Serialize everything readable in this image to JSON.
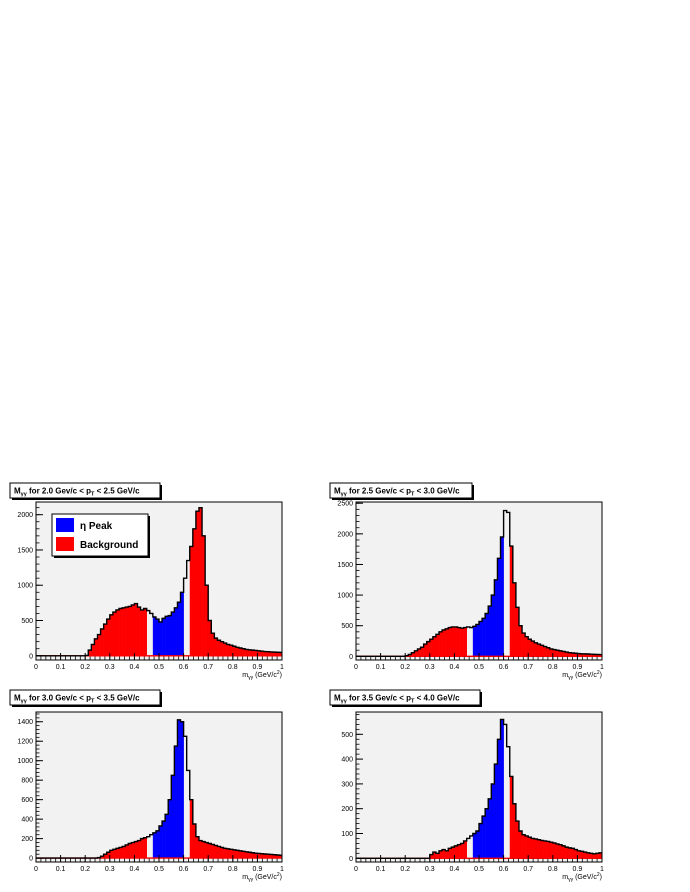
{
  "figure": {
    "panels": [
      {
        "title_main": "M",
        "title_sub1": "γγ",
        "title_mid": " for 2.0 Gev/c < p",
        "title_sub2": "T",
        "title_end": " < 2.5 GeV/c",
        "xlabel_main": "m",
        "xlabel_sub": "γγ",
        "xlabel_unit": " (GeV/c",
        "xlabel_sup": "2",
        "xlabel_close": ")",
        "legend": [
          {
            "label": "η Peak",
            "color": "#0000ff"
          },
          {
            "label": "Background",
            "color": "#ff0000"
          }
        ]
      },
      {
        "title_main": "M",
        "title_sub1": "γγ",
        "title_mid": " for 2.5 Gev/c < p",
        "title_sub2": "T",
        "title_end": " < 3.0 GeV/c",
        "xlabel_main": "m",
        "xlabel_sub": "γγ",
        "xlabel_unit": " (GeV/c",
        "xlabel_sup": "2",
        "xlabel_close": ")",
        "legend": []
      },
      {
        "title_main": "M",
        "title_sub1": "γγ",
        "title_mid": " for 3.0 Gev/c < p",
        "title_sub2": "T",
        "title_end": " < 3.5 GeV/c",
        "xlabel_main": "m",
        "xlabel_sub": "γγ",
        "xlabel_unit": " (GeV/c",
        "xlabel_sup": "2",
        "xlabel_close": ")",
        "legend": []
      },
      {
        "title_main": "M",
        "title_sub1": "γγ",
        "title_mid": " for 3.5 Gev/c < p",
        "title_sub2": "T",
        "title_end": " < 4.0 GeV/c",
        "xlabel_main": "m",
        "xlabel_sub": "γγ",
        "xlabel_unit": " (GeV/c",
        "xlabel_sup": "2",
        "xlabel_close": ")",
        "legend": []
      }
    ]
  },
  "chart_data": [
    {
      "type": "bar",
      "bin_width": 0.0125,
      "xlim": [
        0,
        1
      ],
      "ylim": [
        -60,
        2180
      ],
      "yticks": [
        0,
        500,
        1000,
        1500,
        2000
      ],
      "xticks": [
        0,
        0.1,
        0.2,
        0.3,
        0.4,
        0.5,
        0.6,
        0.7,
        0.8,
        0.9,
        1
      ],
      "xtick_labels": [
        "0",
        "0.1",
        "0.2",
        "0.3",
        "0.4",
        "0.5",
        "0.6",
        "0.7",
        "0.8",
        "0.9",
        "1"
      ],
      "peak_range": [
        0.475,
        0.6
      ],
      "background_ranges": [
        [
          0,
          0.45
        ],
        [
          0.625,
          1
        ]
      ],
      "grid": false,
      "legend_position": "top-left",
      "colors": {
        "peak": "#0000ff",
        "background": "#ff0000",
        "outline": "#000000",
        "plot_bg": "#f2f2f2"
      },
      "values": [
        0,
        0,
        0,
        0,
        0,
        0,
        0,
        0,
        0,
        0,
        0,
        0,
        0,
        0,
        0,
        0,
        5,
        80,
        160,
        240,
        300,
        380,
        450,
        520,
        580,
        620,
        650,
        670,
        680,
        690,
        700,
        720,
        740,
        690,
        650,
        670,
        640,
        600,
        550,
        520,
        480,
        530,
        560,
        570,
        620,
        680,
        760,
        900,
        1100,
        1350,
        1550,
        1800,
        2050,
        2100,
        1700,
        1000,
        500,
        320,
        250,
        220,
        200,
        180,
        160,
        150,
        135,
        120,
        110,
        100,
        90,
        85,
        80,
        75,
        70,
        65,
        60,
        58,
        55,
        52,
        50,
        48
      ]
    },
    {
      "type": "bar",
      "bin_width": 0.0125,
      "xlim": [
        0,
        1
      ],
      "ylim": [
        -60,
        2520
      ],
      "yticks": [
        0,
        500,
        1000,
        1500,
        2000,
        2500
      ],
      "xticks": [
        0,
        0.1,
        0.2,
        0.3,
        0.4,
        0.5,
        0.6,
        0.7,
        0.8,
        0.9,
        1
      ],
      "xtick_labels": [
        "0",
        "0.1",
        "0.2",
        "0.3",
        "0.4",
        "0.5",
        "0.6",
        "0.7",
        "0.8",
        "0.9",
        "1"
      ],
      "peak_range": [
        0.475,
        0.6
      ],
      "background_ranges": [
        [
          0,
          0.45
        ],
        [
          0.625,
          1
        ]
      ],
      "grid": false,
      "legend_position": "none",
      "colors": {
        "peak": "#0000ff",
        "background": "#ff0000",
        "outline": "#000000",
        "plot_bg": "#f2f2f2"
      },
      "values": [
        0,
        0,
        0,
        0,
        0,
        0,
        0,
        0,
        0,
        0,
        0,
        0,
        0,
        0,
        0,
        0,
        10,
        30,
        60,
        90,
        120,
        150,
        200,
        240,
        280,
        320,
        360,
        400,
        430,
        450,
        470,
        480,
        480,
        470,
        460,
        470,
        480,
        470,
        490,
        520,
        570,
        620,
        700,
        820,
        1000,
        1250,
        1600,
        1950,
        2380,
        2350,
        1800,
        1200,
        800,
        500,
        380,
        320,
        280,
        250,
        220,
        200,
        180,
        160,
        140,
        120,
        110,
        100,
        90,
        80,
        70,
        60,
        55,
        50,
        45,
        40,
        40,
        38,
        35,
        32,
        30,
        28
      ]
    },
    {
      "type": "bar",
      "bin_width": 0.0125,
      "xlim": [
        0,
        1
      ],
      "ylim": [
        -40,
        1500
      ],
      "yticks": [
        0,
        200,
        400,
        600,
        800,
        1000,
        1200,
        1400
      ],
      "xticks": [
        0,
        0.1,
        0.2,
        0.3,
        0.4,
        0.5,
        0.6,
        0.7,
        0.8,
        0.9,
        1
      ],
      "xtick_labels": [
        "0",
        "0.1",
        "0.2",
        "0.3",
        "0.4",
        "0.5",
        "0.6",
        "0.7",
        "0.8",
        "0.9",
        "1"
      ],
      "peak_range": [
        0.475,
        0.6
      ],
      "background_ranges": [
        [
          0,
          0.45
        ],
        [
          0.625,
          1
        ]
      ],
      "grid": false,
      "legend_position": "none",
      "colors": {
        "peak": "#0000ff",
        "background": "#ff0000",
        "outline": "#000000",
        "plot_bg": "#f2f2f2"
      },
      "values": [
        0,
        0,
        0,
        0,
        0,
        0,
        0,
        0,
        0,
        0,
        0,
        0,
        0,
        0,
        0,
        0,
        0,
        0,
        0,
        0,
        5,
        20,
        40,
        60,
        80,
        90,
        100,
        110,
        120,
        135,
        150,
        160,
        170,
        180,
        200,
        210,
        220,
        240,
        260,
        280,
        330,
        380,
        450,
        600,
        850,
        1150,
        1420,
        1400,
        1250,
        900,
        600,
        350,
        220,
        180,
        170,
        160,
        150,
        140,
        130,
        120,
        110,
        100,
        95,
        90,
        85,
        80,
        75,
        70,
        65,
        60,
        55,
        50,
        48,
        45,
        42,
        40,
        38,
        35,
        32,
        30
      ]
    },
    {
      "type": "bar",
      "bin_width": 0.0125,
      "xlim": [
        0,
        1
      ],
      "ylim": [
        -15,
        590
      ],
      "yticks": [
        0,
        100,
        200,
        300,
        400,
        500
      ],
      "xticks": [
        0,
        0.1,
        0.2,
        0.3,
        0.4,
        0.5,
        0.6,
        0.7,
        0.8,
        0.9,
        1
      ],
      "xtick_labels": [
        "0",
        "0.1",
        "0.2",
        "0.3",
        "0.4",
        "0.5",
        "0.6",
        "0.7",
        "0.8",
        "0.9",
        "1"
      ],
      "peak_range": [
        0.475,
        0.6
      ],
      "background_ranges": [
        [
          0,
          0.45
        ],
        [
          0.625,
          1
        ]
      ],
      "grid": false,
      "legend_position": "none",
      "colors": {
        "peak": "#0000ff",
        "background": "#ff0000",
        "outline": "#000000",
        "plot_bg": "#f2f2f2"
      },
      "values": [
        0,
        0,
        0,
        0,
        0,
        0,
        0,
        0,
        0,
        0,
        0,
        0,
        0,
        0,
        0,
        0,
        0,
        0,
        0,
        0,
        0,
        0,
        0,
        0,
        15,
        25,
        20,
        30,
        35,
        30,
        40,
        45,
        50,
        55,
        60,
        70,
        80,
        90,
        100,
        110,
        140,
        170,
        200,
        240,
        300,
        380,
        480,
        560,
        540,
        450,
        330,
        220,
        150,
        110,
        95,
        90,
        85,
        80,
        78,
        75,
        72,
        70,
        68,
        65,
        62,
        58,
        55,
        50,
        45,
        42,
        40,
        35,
        30,
        28,
        25,
        22,
        20,
        18,
        20,
        22
      ]
    }
  ]
}
